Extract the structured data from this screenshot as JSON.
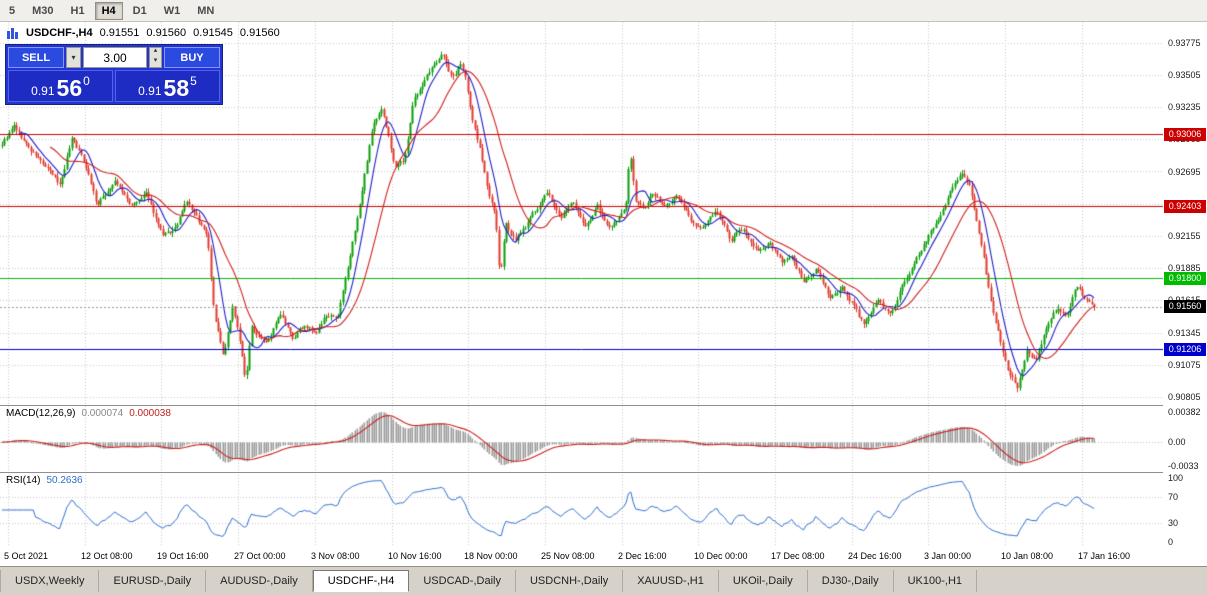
{
  "toolbar": {
    "timeframes": [
      "5",
      "M30",
      "H1",
      "H4",
      "D1",
      "W1",
      "MN"
    ],
    "active": "H4"
  },
  "chart_header": {
    "title": "USDCHF-,H4",
    "open": "0.91551",
    "high": "0.91560",
    "low": "0.91545",
    "close": "0.91560"
  },
  "trade_panel": {
    "sell_label": "SELL",
    "buy_label": "BUY",
    "volume": "3.00",
    "sell_price_main": "0.91",
    "sell_price_pips": "56",
    "sell_price_point": "0",
    "buy_price_main": "0.91",
    "buy_price_pips": "58",
    "buy_price_point": "5"
  },
  "chart_data": {
    "type": "candlestick",
    "title": "USDCHF-,H4",
    "symbol": "USDCHF",
    "timeframe": "H4",
    "current_bar": {
      "open": 0.91551,
      "high": 0.9156,
      "low": 0.91545,
      "close": 0.9156
    },
    "y_axis": {
      "min": 0.9078,
      "max": 0.9383,
      "ticks": [
        0.93775,
        0.93505,
        0.93235,
        0.92965,
        0.92695,
        0.92425,
        0.92155,
        0.91885,
        0.91615,
        0.91345,
        0.91075,
        0.90805
      ]
    },
    "x_axis": {
      "labels": [
        "5 Oct 2021",
        "12 Oct 08:00",
        "19 Oct 16:00",
        "27 Oct 00:00",
        "3 Nov 08:00",
        "10 Nov 16:00",
        "18 Nov 00:00",
        "25 Nov 08:00",
        "2 Dec 16:00",
        "10 Dec 00:00",
        "17 Dec 08:00",
        "24 Dec 16:00",
        "3 Jan 00:00",
        "10 Jan 08:00",
        "17 Jan 16:00"
      ]
    },
    "levels": [
      {
        "price": 0.93006,
        "label": "0.93006",
        "color": "#cc0000"
      },
      {
        "price": 0.92403,
        "label": "0.92403",
        "color": "#cc0000"
      },
      {
        "price": 0.918,
        "label": "0.91800",
        "color": "#00bb00"
      },
      {
        "price": 0.91206,
        "label": "0.91206",
        "color": "#0000cc"
      }
    ],
    "current_price": {
      "value": 0.9156,
      "label": "0.91560",
      "color": "#000000"
    },
    "candles": {
      "count": 456,
      "seed": 9,
      "volatility": 0.0004,
      "up_color": "#0a9e0a",
      "down_color": "#e03a2e",
      "close_path": [
        [
          0.0,
          0.9293
        ],
        [
          0.011,
          0.9307
        ],
        [
          0.025,
          0.9288
        ],
        [
          0.037,
          0.9276
        ],
        [
          0.053,
          0.9258
        ],
        [
          0.064,
          0.9299
        ],
        [
          0.078,
          0.9272
        ],
        [
          0.087,
          0.9241
        ],
        [
          0.103,
          0.9261
        ],
        [
          0.119,
          0.924
        ],
        [
          0.133,
          0.925
        ],
        [
          0.147,
          0.9214
        ],
        [
          0.158,
          0.922
        ],
        [
          0.169,
          0.9244
        ],
        [
          0.18,
          0.9228
        ],
        [
          0.188,
          0.9216
        ],
        [
          0.194,
          0.9152
        ],
        [
          0.203,
          0.9112
        ],
        [
          0.211,
          0.9158
        ],
        [
          0.219,
          0.9122
        ],
        [
          0.223,
          0.909
        ],
        [
          0.228,
          0.9142
        ],
        [
          0.231,
          0.9136
        ],
        [
          0.243,
          0.9128
        ],
        [
          0.255,
          0.9149
        ],
        [
          0.266,
          0.9128
        ],
        [
          0.277,
          0.9141
        ],
        [
          0.288,
          0.9133
        ],
        [
          0.298,
          0.9151
        ],
        [
          0.307,
          0.9143
        ],
        [
          0.319,
          0.92
        ],
        [
          0.33,
          0.9255
        ],
        [
          0.339,
          0.9308
        ],
        [
          0.348,
          0.9322
        ],
        [
          0.355,
          0.9295
        ],
        [
          0.359,
          0.9273
        ],
        [
          0.368,
          0.928
        ],
        [
          0.377,
          0.933
        ],
        [
          0.387,
          0.9346
        ],
        [
          0.396,
          0.9358
        ],
        [
          0.403,
          0.9371
        ],
        [
          0.409,
          0.9352
        ],
        [
          0.415,
          0.9348
        ],
        [
          0.419,
          0.9363
        ],
        [
          0.425,
          0.9344
        ],
        [
          0.429,
          0.932
        ],
        [
          0.438,
          0.9287
        ],
        [
          0.445,
          0.9252
        ],
        [
          0.452,
          0.923
        ],
        [
          0.456,
          0.9178
        ],
        [
          0.461,
          0.9224
        ],
        [
          0.47,
          0.9213
        ],
        [
          0.476,
          0.9218
        ],
        [
          0.487,
          0.9235
        ],
        [
          0.499,
          0.9252
        ],
        [
          0.511,
          0.923
        ],
        [
          0.522,
          0.9245
        ],
        [
          0.533,
          0.9222
        ],
        [
          0.545,
          0.9241
        ],
        [
          0.557,
          0.9219
        ],
        [
          0.565,
          0.923
        ],
        [
          0.571,
          0.9241
        ],
        [
          0.575,
          0.9289
        ],
        [
          0.58,
          0.9243
        ],
        [
          0.588,
          0.9238
        ],
        [
          0.595,
          0.9252
        ],
        [
          0.606,
          0.9241
        ],
        [
          0.618,
          0.925
        ],
        [
          0.63,
          0.9229
        ],
        [
          0.641,
          0.9221
        ],
        [
          0.655,
          0.9236
        ],
        [
          0.667,
          0.9212
        ],
        [
          0.678,
          0.9223
        ],
        [
          0.691,
          0.9202
        ],
        [
          0.703,
          0.9211
        ],
        [
          0.714,
          0.9192
        ],
        [
          0.723,
          0.9199
        ],
        [
          0.734,
          0.9177
        ],
        [
          0.746,
          0.9187
        ],
        [
          0.758,
          0.9164
        ],
        [
          0.769,
          0.9172
        ],
        [
          0.78,
          0.9157
        ],
        [
          0.789,
          0.914
        ],
        [
          0.801,
          0.9161
        ],
        [
          0.813,
          0.915
        ],
        [
          0.824,
          0.9173
        ],
        [
          0.835,
          0.9191
        ],
        [
          0.847,
          0.9213
        ],
        [
          0.859,
          0.9229
        ],
        [
          0.87,
          0.9255
        ],
        [
          0.879,
          0.9268
        ],
        [
          0.886,
          0.9259
        ],
        [
          0.895,
          0.9217
        ],
        [
          0.905,
          0.9162
        ],
        [
          0.914,
          0.9127
        ],
        [
          0.923,
          0.9098
        ],
        [
          0.93,
          0.9089
        ],
        [
          0.938,
          0.912
        ],
        [
          0.947,
          0.9112
        ],
        [
          0.957,
          0.9141
        ],
        [
          0.966,
          0.9155
        ],
        [
          0.975,
          0.915
        ],
        [
          0.984,
          0.9174
        ],
        [
          0.993,
          0.916
        ],
        [
          1.0,
          0.9156
        ]
      ]
    },
    "moving_averages": [
      {
        "period": 8,
        "color": "#2020c8"
      },
      {
        "period": 21,
        "color": "#d02020"
      }
    ],
    "indicators": {
      "macd": {
        "name": "MACD(12,26,9)",
        "value_main": "0.000074",
        "value_signal": "0.000038",
        "fast": 12,
        "slow": 26,
        "signal": 9,
        "scale_max": 0.00382,
        "scale_min": -0.0033,
        "axis_labels": [
          "0.00382",
          "0.00",
          "-0.0033"
        ],
        "histogram_color": "#9c9c9c",
        "signal_color": "#cc2222"
      },
      "rsi": {
        "name": "RSI(14)",
        "value": "50.2636",
        "period": 14,
        "levels": [
          70,
          30
        ],
        "axis_labels": [
          "100",
          "70",
          "30",
          "0"
        ],
        "color": "#2f6fd0"
      }
    }
  },
  "bottom_tabs": {
    "items": [
      "USDX,Weekly",
      "EURUSD-,Daily",
      "AUDUSD-,Daily",
      "USDCHF-,H4",
      "USDCAD-,Daily",
      "USDCNH-,Daily",
      "XAUUSD-,H1",
      "UKOil-,Daily",
      "DJ30-,Daily",
      "UK100-,H1"
    ],
    "active_index": 3
  }
}
